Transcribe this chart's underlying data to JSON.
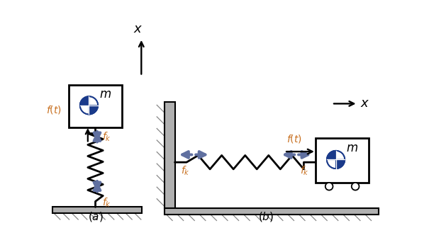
{
  "fig_width": 6.05,
  "fig_height": 3.22,
  "dpi": 100,
  "bg_color": "#ffffff",
  "spring_color": "#000000",
  "arrow_blue": "#6070a0",
  "arrow_black": "#000000",
  "ground_color": "#b0b0b0",
  "wall_color": "#b0b0b0",
  "ft_color": "#c87020",
  "fk_color": "#c87020",
  "mass_edge": "#000000",
  "circle_blue": "#1a3a8a",
  "xylim": [
    0,
    10,
    0,
    6.5
  ]
}
